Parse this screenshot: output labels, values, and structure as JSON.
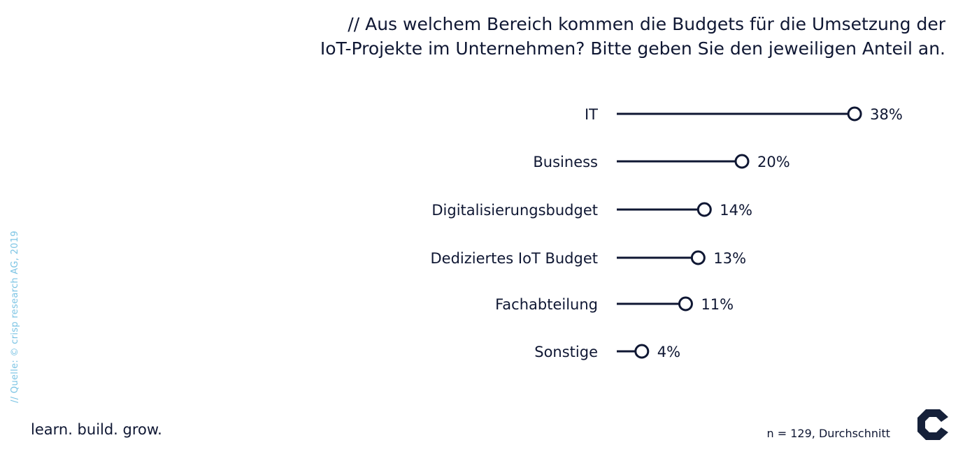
{
  "title": {
    "line1": "// Aus welchem Bereich kommen die Budgets für die Umsetzung der",
    "line2": "IoT-Projekte im Unternehmen? Bitte geben Sie den jeweiligen Anteil an."
  },
  "source": "// Quelle: © crisp research AG, 2019",
  "tagline": "learn. build. grow.",
  "footnote": "n = 129, Durchschnitt",
  "logo": {
    "icon": "crisp-c-logo-icon",
    "color": "#16213a"
  },
  "colors": {
    "text": "#0f1733",
    "line": "#0f1733",
    "marker_fill": "#ffffff",
    "source_text": "#7cc4e4"
  },
  "chart_data": {
    "type": "lollipop",
    "categories": [
      "IT",
      "Business",
      "Digitalisierungsbudget",
      "Dediziertes IoT Budget",
      "Fachabteilung",
      "Sonstige"
    ],
    "values": [
      38,
      20,
      14,
      13,
      11,
      4
    ],
    "value_labels": [
      "38%",
      "20%",
      "14%",
      "13%",
      "11%",
      "4%"
    ],
    "unit": "%",
    "xlim": [
      0,
      40
    ],
    "grid": false,
    "axes_visible": false
  }
}
